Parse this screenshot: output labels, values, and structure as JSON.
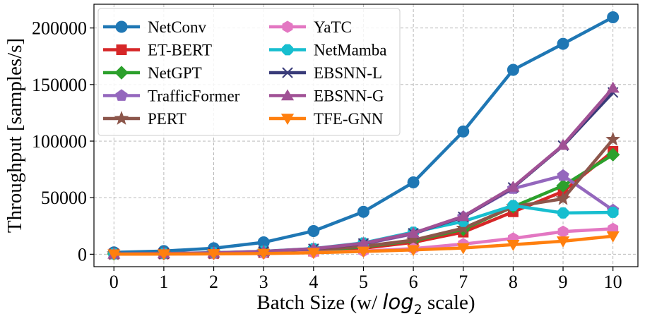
{
  "chart_data": {
    "type": "line",
    "title": "",
    "xlabel": "Batch Size (w/ log₂ scale)",
    "xlabel_parts": {
      "prefix": "Batch Size (w/ ",
      "log": "log",
      "sub": "2",
      "suffix": " scale)"
    },
    "ylabel": "Throughput [samples/s]",
    "x": [
      0,
      1,
      2,
      3,
      4,
      5,
      6,
      7,
      8,
      9,
      10
    ],
    "x_tick_labels": [
      "0",
      "1",
      "2",
      "3",
      "4",
      "5",
      "6",
      "7",
      "8",
      "9",
      "10"
    ],
    "y_ticks": [
      0,
      50000,
      100000,
      150000,
      200000
    ],
    "y_tick_labels": [
      "0",
      "50000",
      "100000",
      "150000",
      "200000"
    ],
    "xlim": [
      -0.4,
      10.5
    ],
    "ylim": [
      -11000,
      221000
    ],
    "grid": true,
    "legend": "upper-left, 2 columns",
    "series": [
      {
        "name": "NetConv",
        "color": "#1f77b4",
        "marker": "circle",
        "values": [
          1600,
          2800,
          5300,
          10500,
          20500,
          37500,
          63500,
          108500,
          163000,
          186000,
          209500
        ]
      },
      {
        "name": "ET-BERT",
        "color": "#d62728",
        "marker": "square",
        "values": [
          200,
          400,
          700,
          1400,
          2700,
          5300,
          10500,
          19500,
          37500,
          55500,
          91000
        ]
      },
      {
        "name": "NetGPT",
        "color": "#2ca02c",
        "marker": "diamond",
        "values": [
          250,
          500,
          900,
          1800,
          3300,
          6500,
          12000,
          22000,
          42000,
          60500,
          88000
        ]
      },
      {
        "name": "TrafficFormer",
        "color": "#9467bd",
        "marker": "pentagon",
        "values": [
          300,
          600,
          1200,
          2300,
          4500,
          9000,
          18000,
          33000,
          58000,
          69500,
          39000
        ]
      },
      {
        "name": "PERT",
        "color": "#8c564b",
        "marker": "star",
        "values": [
          280,
          550,
          1000,
          2000,
          3800,
          7000,
          12500,
          23000,
          42000,
          49000,
          101500
        ]
      },
      {
        "name": "YaTC",
        "color": "#e377c2",
        "marker": "hexagon",
        "values": [
          100,
          200,
          400,
          800,
          1500,
          2800,
          5000,
          9000,
          14000,
          20000,
          22500
        ]
      },
      {
        "name": "NetMamba",
        "color": "#17becf",
        "marker": "octagon",
        "values": [
          350,
          700,
          1300,
          2600,
          5000,
          10000,
          19500,
          29000,
          43000,
          36500,
          37000
        ]
      },
      {
        "name": "EBSNN-L",
        "color": "#393b79",
        "marker": "x",
        "values": [
          300,
          600,
          1200,
          2400,
          4800,
          9500,
          18500,
          33000,
          59000,
          96000,
          143000
        ]
      },
      {
        "name": "EBSNN-G",
        "color": "#a05195",
        "marker": "triangle-up",
        "values": [
          310,
          620,
          1250,
          2500,
          4900,
          9700,
          18700,
          33500,
          59500,
          96500,
          147000
        ]
      },
      {
        "name": "TFE-GNN",
        "color": "#ff7f0e",
        "marker": "triangle-down",
        "values": [
          80,
          160,
          320,
          640,
          1300,
          2500,
          3800,
          5500,
          8500,
          11500,
          16000
        ]
      }
    ]
  }
}
